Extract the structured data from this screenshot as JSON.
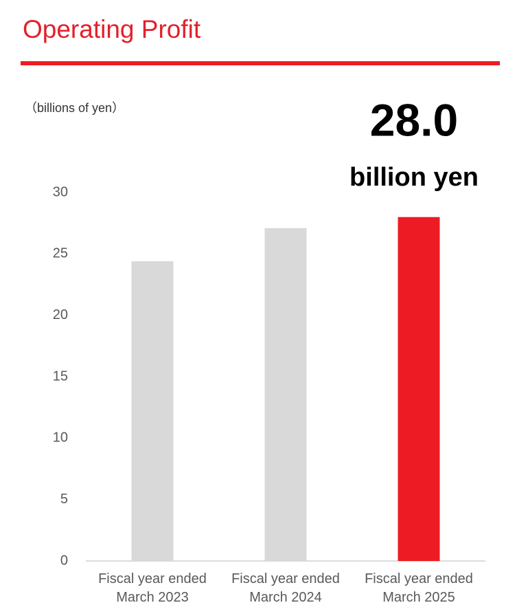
{
  "chart_data": {
    "type": "bar",
    "title": "Operating Profit",
    "y_label": "（billions of yen）",
    "categories": [
      "Fiscal year ended\nMarch 2023",
      "Fiscal year ended\nMarch 2024",
      "Fiscal year ended\nMarch 2025"
    ],
    "values": [
      24.4,
      27.1,
      28.0
    ],
    "value_labels": [
      null,
      null,
      "28.0"
    ],
    "annotation": "billion yen",
    "colors": [
      "#d9d9d9",
      "#d9d9d9",
      "#ed1c24"
    ],
    "title_color": "#e3202a",
    "ylim": [
      0,
      30
    ],
    "yticks": [
      0,
      5,
      10,
      15,
      20,
      25,
      30
    ],
    "grid": false
  }
}
